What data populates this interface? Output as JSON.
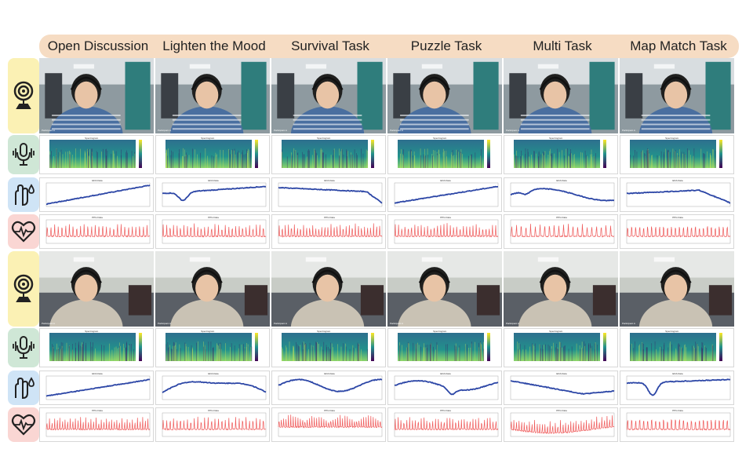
{
  "tasks": [
    "Open Discussion",
    "Lighten the Mood",
    "Survival Task",
    "Puzzle Task",
    "Multi Task",
    "Map Match Task"
  ],
  "row_icons": {
    "webcam": "webcam-icon",
    "microphone": "microphone-icon",
    "eda": "hand-sweat-icon",
    "ppg": "heart-pulse-icon"
  },
  "panel_titles": {
    "spectrogram": "Spectrogram",
    "eda": "EDA Data",
    "ppg": "PPG Data"
  },
  "participant_label": "Participant A",
  "colors": {
    "header_band": "#f6dcc3",
    "eda_line": "#2c46a6",
    "ppg_line": "#ef5b5b",
    "webcam_bg": "#fbf1b4",
    "mic_bg": "#cfe7d6",
    "eda_bg": "#cfe4f6",
    "ppg_bg": "#fad6d3"
  }
}
